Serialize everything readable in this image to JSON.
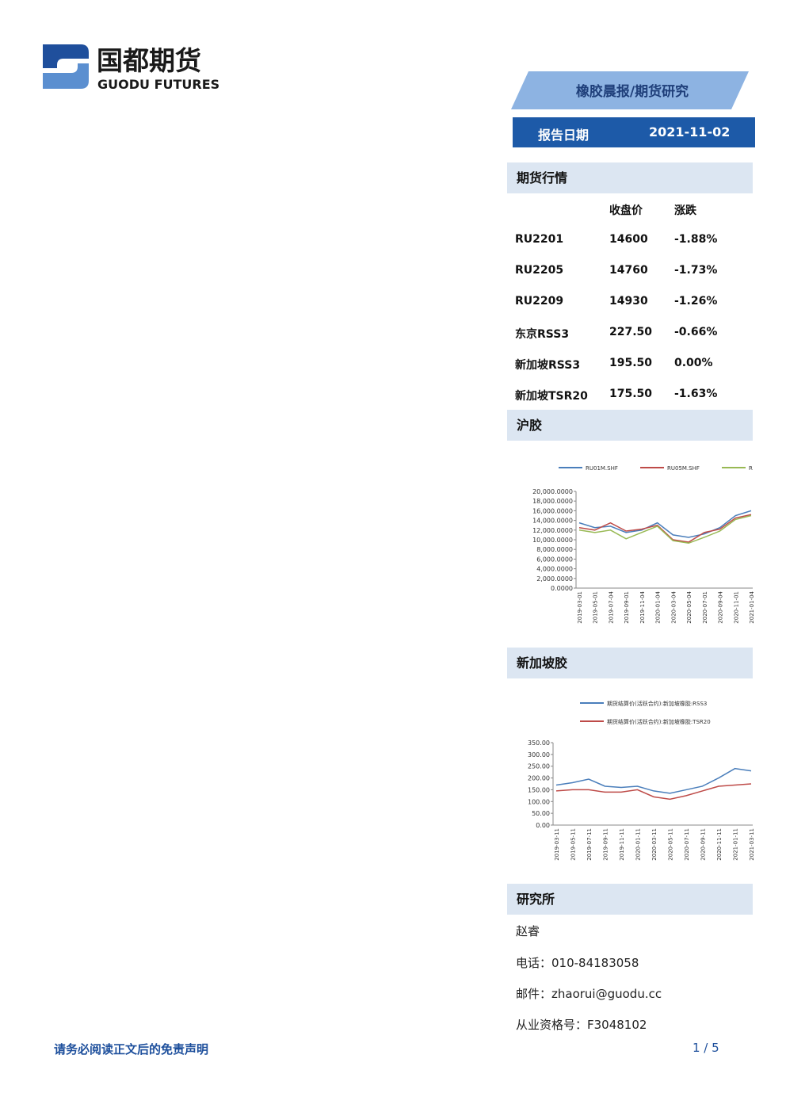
{
  "header": {
    "logo_cn": "国都期货",
    "logo_en": "GUODU FUTURES",
    "report_title": "橡胶晨报/期货研究",
    "date_label": "报告日期",
    "date": "2021-11-02"
  },
  "market": {
    "title": "期货行情",
    "columns": [
      "收盘价",
      "涨跌"
    ],
    "rows": [
      [
        "RU2201",
        "14600",
        "-1.88%"
      ],
      [
        "RU2205",
        "14760",
        "-1.73%"
      ],
      [
        "RU2209",
        "14930",
        "-1.26%"
      ],
      [
        "东京RSS3",
        "227.50",
        "-0.66%"
      ],
      [
        "新加坡RSS3",
        "195.50",
        "0.00%"
      ],
      [
        "新加坡TSR20",
        "175.50",
        "-1.63%"
      ]
    ]
  },
  "chart_data": [
    {
      "type": "line",
      "title": "沪胶",
      "categories": [
        "2019-03-01",
        "2019-05-01",
        "2019-07-04",
        "2019-09-01",
        "2019-11-04",
        "2020-01-04",
        "2020-03-04",
        "2020-05-04",
        "2020-07-01",
        "2020-09-04",
        "2020-11-01",
        "2021-01-04"
      ],
      "series": [
        {
          "name": "RU01M.SHF",
          "color": "#4a7ebb",
          "values": [
            13500,
            12500,
            12800,
            11500,
            12000,
            13500,
            11000,
            10500,
            11200,
            12500,
            15000,
            16000
          ]
        },
        {
          "name": "RU05M.SHF",
          "color": "#be4b48",
          "values": [
            12500,
            12000,
            13500,
            11800,
            12200,
            13000,
            10000,
            9500,
            11500,
            12200,
            14500,
            15200
          ]
        },
        {
          "name": "R",
          "color": "#98b954",
          "values": [
            12000,
            11500,
            12000,
            10200,
            11500,
            12800,
            9800,
            9300,
            10500,
            11800,
            14200,
            15000
          ]
        }
      ],
      "ylim": [
        0,
        20000
      ],
      "yticks": [
        {
          "value": 0,
          "label": "0.0000"
        },
        {
          "value": 2000,
          "label": "2,000.0000"
        },
        {
          "value": 4000,
          "label": "4,000.0000"
        },
        {
          "value": 6000,
          "label": "6,000.0000"
        },
        {
          "value": 8000,
          "label": "8,000.0000"
        },
        {
          "value": 10000,
          "label": "10,000.0000"
        },
        {
          "value": 12000,
          "label": "12,000.0000"
        },
        {
          "value": 14000,
          "label": "14,000.0000"
        },
        {
          "value": 16000,
          "label": "16,000.0000"
        },
        {
          "value": 18000,
          "label": "18,000.0000"
        },
        {
          "value": 20000,
          "label": "20,000.0000"
        }
      ],
      "grid": false,
      "legend": "top"
    },
    {
      "type": "line",
      "title": "新加坡胶",
      "categories": [
        "2019-03-11",
        "2019-05-11",
        "2019-07-11",
        "2019-09-11",
        "2019-11-11",
        "2020-01-11",
        "2020-03-11",
        "2020-05-11",
        "2020-07-11",
        "2020-09-11",
        "2020-11-11",
        "2021-01-11",
        "2021-03-11"
      ],
      "series": [
        {
          "name": "期货结算价(活跃合约):新加坡橡胶:RSS3",
          "color": "#4a7ebb",
          "values": [
            170,
            180,
            195,
            165,
            160,
            165,
            145,
            135,
            150,
            165,
            200,
            240,
            230
          ]
        },
        {
          "name": "期货结算价(活跃合约):新加坡橡胶:TSR20",
          "color": "#be4b48",
          "values": [
            145,
            150,
            150,
            140,
            140,
            150,
            120,
            110,
            125,
            145,
            165,
            170,
            175
          ]
        }
      ],
      "ylim": [
        0,
        350
      ],
      "yticks": [
        {
          "value": 0,
          "label": "0.00"
        },
        {
          "value": 50,
          "label": "50.00"
        },
        {
          "value": 100,
          "label": "100.00"
        },
        {
          "value": 150,
          "label": "150.00"
        },
        {
          "value": 200,
          "label": "200.00"
        },
        {
          "value": 250,
          "label": "250.00"
        },
        {
          "value": 300,
          "label": "300.00"
        },
        {
          "value": 350,
          "label": "350.00"
        }
      ],
      "grid": false,
      "legend": "top"
    }
  ],
  "research": {
    "title": "研究所",
    "lines": [
      "赵睿",
      "电话：010-84183058",
      "邮件：zhaorui@guodu.cc",
      "从业资格号：F3048102"
    ]
  },
  "footer": {
    "disclaimer": "请务必阅读正文后的免责声明",
    "page": "1 / 5"
  }
}
